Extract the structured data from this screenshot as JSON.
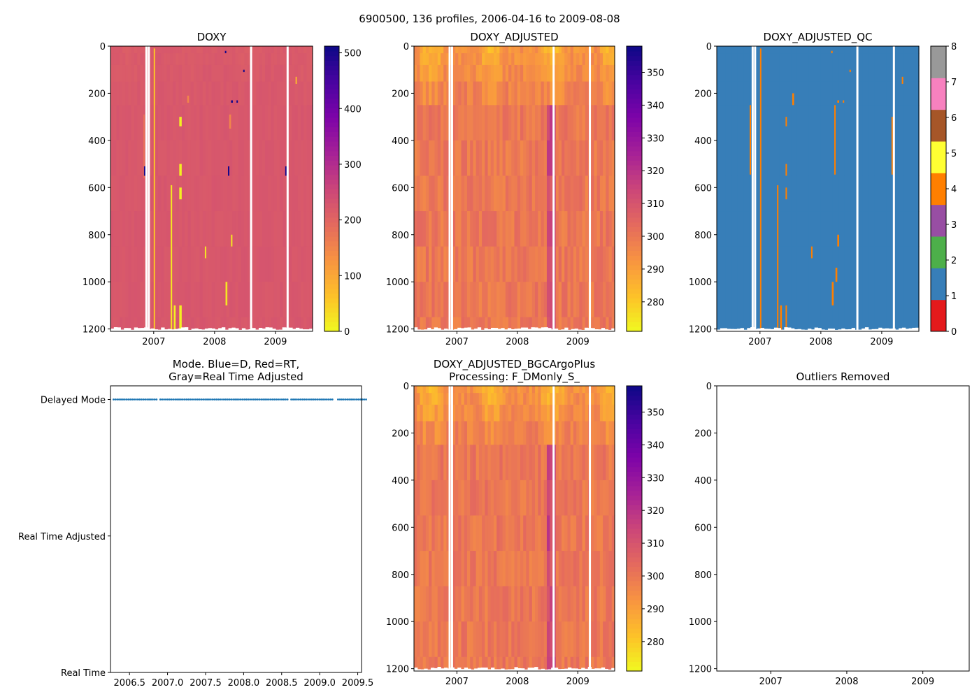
{
  "figure": {
    "suptitle": "6900500, 136 profiles, 2006-04-16 to 2009-08-08"
  },
  "colors": {
    "white": "#ffffff",
    "qc_blue": "#3a7dbc",
    "qc_orange": "#f88418",
    "doxy_base": "#d95c68",
    "adj_base": "#ea7d4c"
  },
  "chart_data": [
    {
      "id": "doxy",
      "type": "heatmap",
      "title": "DOXY",
      "xlabel": "",
      "ylabel": "",
      "xlim": [
        2006.29,
        2009.61
      ],
      "ylim": [
        1210,
        0
      ],
      "xticks": [
        2007,
        2008,
        2009
      ],
      "xtick_labels": [
        "2007",
        "2008",
        "2009"
      ],
      "yticks": [
        0,
        200,
        400,
        600,
        800,
        1000,
        1200
      ],
      "ytick_labels": [
        "0",
        "200",
        "400",
        "600",
        "800",
        "1000",
        "1200"
      ],
      "colormap": "plasma_r",
      "colorbar": {
        "range": [
          0,
          512
        ],
        "ticks": [
          0,
          100,
          200,
          300,
          400,
          500
        ],
        "tick_labels": [
          "0",
          "100",
          "200",
          "300",
          "400",
          "500"
        ]
      },
      "field": {
        "base": 225,
        "surface": 215
      },
      "gaps": [
        2006.88,
        2006.92,
        2008.6,
        2009.2
      ],
      "streaks": [
        {
          "x": 2006.83,
          "x2": 2006.85,
          "y1": 290,
          "y2": 560,
          "value": 180
        },
        {
          "x": 2007.0,
          "x2": 2007.02,
          "y1": 10,
          "y2": 1210,
          "value": 60
        },
        {
          "x": 2007.28,
          "x2": 2007.3,
          "y1": 590,
          "y2": 1210,
          "value": 20
        },
        {
          "x": 2007.33,
          "x2": 2007.36,
          "y1": 1100,
          "y2": 1210,
          "value": 10
        },
        {
          "x": 2007.42,
          "x2": 2007.46,
          "y1": 300,
          "y2": 340,
          "value": 10
        },
        {
          "x": 2007.42,
          "x2": 2007.46,
          "y1": 500,
          "y2": 550,
          "value": 10
        },
        {
          "x": 2007.42,
          "x2": 2007.46,
          "y1": 600,
          "y2": 650,
          "value": 10
        },
        {
          "x": 2007.42,
          "x2": 2007.46,
          "y1": 1100,
          "y2": 1210,
          "value": 10
        },
        {
          "x": 2007.55,
          "x2": 2007.58,
          "y1": 210,
          "y2": 240,
          "value": 150
        },
        {
          "x": 2007.84,
          "x2": 2007.86,
          "y1": 850,
          "y2": 900,
          "value": 20
        },
        {
          "x": 2008.18,
          "x2": 2008.21,
          "y1": 1000,
          "y2": 1100,
          "value": 20
        },
        {
          "x": 2008.24,
          "x2": 2008.27,
          "y1": 290,
          "y2": 350,
          "value": 150
        },
        {
          "x": 2008.27,
          "x2": 2008.29,
          "y1": 800,
          "y2": 850,
          "value": 20
        },
        {
          "x": 2009.33,
          "x2": 2009.34,
          "y1": 130,
          "y2": 160,
          "value": 80
        },
        {
          "x": 2006.84,
          "x2": 2006.86,
          "y1": 510,
          "y2": 550,
          "value": 505
        },
        {
          "x": 2008.22,
          "x2": 2008.24,
          "y1": 510,
          "y2": 550,
          "value": 505
        },
        {
          "x": 2009.16,
          "x2": 2009.18,
          "y1": 510,
          "y2": 550,
          "value": 505
        },
        {
          "x": 2008.27,
          "x2": 2008.3,
          "y1": 230,
          "y2": 240,
          "value": 505
        },
        {
          "x": 2008.36,
          "x2": 2008.38,
          "y1": 230,
          "y2": 240,
          "value": 505
        },
        {
          "x": 2008.47,
          "x2": 2008.49,
          "y1": 100,
          "y2": 110,
          "value": 505
        },
        {
          "x": 2008.17,
          "x2": 2008.19,
          "y1": 20,
          "y2": 30,
          "value": 505
        }
      ]
    },
    {
      "id": "doxy_adjusted",
      "type": "heatmap",
      "title": "DOXY_ADJUSTED",
      "xlim": [
        2006.29,
        2009.61
      ],
      "ylim": [
        1210,
        0
      ],
      "xticks": [
        2007,
        2008,
        2009
      ],
      "xtick_labels": [
        "2007",
        "2008",
        "2009"
      ],
      "yticks": [
        0,
        200,
        400,
        600,
        800,
        1000,
        1200
      ],
      "ytick_labels": [
        "0",
        "200",
        "400",
        "600",
        "800",
        "1000",
        "1200"
      ],
      "colormap": "plasma_r",
      "colorbar": {
        "range": [
          271,
          358
        ],
        "ticks": [
          280,
          290,
          300,
          310,
          320,
          330,
          340,
          350
        ],
        "tick_labels": [
          "280",
          "290",
          "300",
          "310",
          "320",
          "330",
          "340",
          "350"
        ]
      },
      "field": {
        "base": 300,
        "surface": 283
      },
      "gaps": [
        2006.88,
        2006.92,
        2008.6,
        2009.2
      ],
      "streaks": []
    },
    {
      "id": "doxy_adjusted_qc",
      "type": "heatmap",
      "title": "DOXY_ADJUSTED_QC",
      "xlim": [
        2006.29,
        2009.61
      ],
      "ylim": [
        1210,
        0
      ],
      "xticks": [
        2007,
        2008,
        2009
      ],
      "xtick_labels": [
        "2007",
        "2008",
        "2009"
      ],
      "yticks": [
        0,
        200,
        400,
        600,
        800,
        1000,
        1200
      ],
      "ytick_labels": [
        "0",
        "200",
        "400",
        "600",
        "800",
        "1000",
        "1200"
      ],
      "colormap": "Set1 (discrete)",
      "colorbar": {
        "range": [
          0,
          8
        ],
        "ticks": [
          0,
          1,
          2,
          3,
          4,
          5,
          6,
          7,
          8
        ],
        "tick_labels": [
          "0",
          "1",
          "2",
          "3",
          "4",
          "5",
          "6",
          "7",
          "8"
        ],
        "bins": [
          "#e41a1c",
          "#377eb8",
          "#4daf4a",
          "#984ea3",
          "#ff7f00",
          "#ffff33",
          "#a65628",
          "#f781bf",
          "#999999"
        ]
      },
      "field": {
        "base": 1
      },
      "gaps": [
        2006.88,
        2006.92,
        2008.6,
        2009.2
      ],
      "streaks": [
        {
          "x": 2006.83,
          "x2": 2006.85,
          "y1": 250,
          "y2": 545,
          "value": 4
        },
        {
          "x": 2007.0,
          "x2": 2007.02,
          "y1": 10,
          "y2": 1210,
          "value": 4
        },
        {
          "x": 2007.28,
          "x2": 2007.3,
          "y1": 590,
          "y2": 1210,
          "value": 4
        },
        {
          "x": 2007.33,
          "x2": 2007.36,
          "y1": 1100,
          "y2": 1210,
          "value": 4
        },
        {
          "x": 2007.42,
          "x2": 2007.44,
          "y1": 300,
          "y2": 340,
          "value": 4
        },
        {
          "x": 2007.42,
          "x2": 2007.44,
          "y1": 500,
          "y2": 550,
          "value": 4
        },
        {
          "x": 2007.42,
          "x2": 2007.44,
          "y1": 600,
          "y2": 650,
          "value": 4
        },
        {
          "x": 2007.42,
          "x2": 2007.44,
          "y1": 1100,
          "y2": 1210,
          "value": 4
        },
        {
          "x": 2007.53,
          "x2": 2007.56,
          "y1": 200,
          "y2": 250,
          "value": 4
        },
        {
          "x": 2007.84,
          "x2": 2007.86,
          "y1": 850,
          "y2": 900,
          "value": 4
        },
        {
          "x": 2008.18,
          "x2": 2008.21,
          "y1": 1000,
          "y2": 1100,
          "value": 4
        },
        {
          "x": 2008.22,
          "x2": 2008.24,
          "y1": 250,
          "y2": 545,
          "value": 4
        },
        {
          "x": 2008.24,
          "x2": 2008.27,
          "y1": 940,
          "y2": 1000,
          "value": 4
        },
        {
          "x": 2008.27,
          "x2": 2008.3,
          "y1": 800,
          "y2": 850,
          "value": 4
        },
        {
          "x": 2008.27,
          "x2": 2008.3,
          "y1": 230,
          "y2": 240,
          "value": 4
        },
        {
          "x": 2008.36,
          "x2": 2008.38,
          "y1": 230,
          "y2": 240,
          "value": 4
        },
        {
          "x": 2008.47,
          "x2": 2008.49,
          "y1": 100,
          "y2": 110,
          "value": 4
        },
        {
          "x": 2008.17,
          "x2": 2008.19,
          "y1": 20,
          "y2": 30,
          "value": 4
        },
        {
          "x": 2009.16,
          "x2": 2009.18,
          "y1": 300,
          "y2": 545,
          "value": 4
        },
        {
          "x": 2009.33,
          "x2": 2009.34,
          "y1": 130,
          "y2": 160,
          "value": 4
        }
      ]
    },
    {
      "id": "mode",
      "type": "scatter",
      "title": "Mode. Blue=D, Red=RT,\nGray=Real Time Adjusted",
      "title_lines": [
        "Mode. Blue=D, Red=RT,",
        "Gray=Real Time Adjusted"
      ],
      "xlim": [
        2006.25,
        2009.55
      ],
      "xticks": [
        2006.5,
        2007.0,
        2007.5,
        2008.0,
        2008.5,
        2009.0,
        2009.5
      ],
      "xtick_labels": [
        "2006.5",
        "2007.0",
        "2007.5",
        "2008.0",
        "2008.5",
        "2009.0",
        "2009.5"
      ],
      "yticks": [
        0,
        1,
        2
      ],
      "ytick_labels": [
        "Real Time",
        "Real Time Adjusted",
        "Delayed Mode"
      ],
      "ylim": [
        0,
        2.1
      ],
      "series": [
        {
          "name": "Delayed Mode",
          "color": "#1f77b4",
          "y": 2,
          "x_start": 2006.29,
          "x_end": 2009.61,
          "count": 136,
          "gaps": [
            2006.88,
            2008.6,
            2009.2
          ]
        }
      ]
    },
    {
      "id": "bgcargoplus",
      "type": "heatmap",
      "title": "DOXY_ADJUSTED_BGCArgoPlus\nProcessing: F_DMonly_S_",
      "title_lines": [
        "DOXY_ADJUSTED_BGCArgoPlus",
        "Processing: F_DMonly_S_"
      ],
      "xlim": [
        2006.29,
        2009.61
      ],
      "ylim": [
        1210,
        0
      ],
      "xticks": [
        2007,
        2008,
        2009
      ],
      "xtick_labels": [
        "2007",
        "2008",
        "2009"
      ],
      "yticks": [
        0,
        200,
        400,
        600,
        800,
        1000,
        1200
      ],
      "ytick_labels": [
        "0",
        "200",
        "400",
        "600",
        "800",
        "1000",
        "1200"
      ],
      "colormap": "plasma_r",
      "colorbar": {
        "range": [
          271,
          358
        ],
        "ticks": [
          280,
          290,
          300,
          310,
          320,
          330,
          340,
          350
        ],
        "tick_labels": [
          "280",
          "290",
          "300",
          "310",
          "320",
          "330",
          "340",
          "350"
        ]
      },
      "field": {
        "base": 300,
        "surface": 283
      },
      "gaps": [
        2006.88,
        2006.92,
        2008.6,
        2009.2
      ],
      "streaks": []
    },
    {
      "id": "outliers",
      "type": "scatter",
      "title": "Outliers Removed",
      "xlim": [
        2006.29,
        2009.61
      ],
      "ylim": [
        1210,
        0
      ],
      "xticks": [
        2007,
        2008,
        2009
      ],
      "xtick_labels": [
        "2007",
        "2008",
        "2009"
      ],
      "yticks": [
        0,
        200,
        400,
        600,
        800,
        1000,
        1200
      ],
      "ytick_labels": [
        "0",
        "200",
        "400",
        "600",
        "800",
        "1000",
        "1200"
      ],
      "series": []
    }
  ]
}
